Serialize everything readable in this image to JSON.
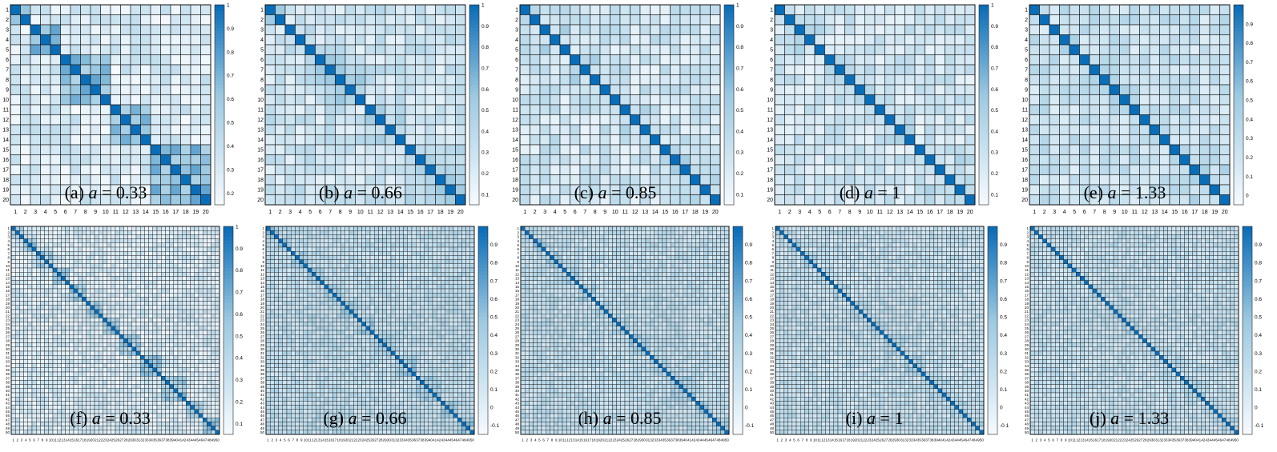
{
  "colors": {
    "low": "#f7fbff",
    "mid": "#9ecae1",
    "high": "#0a6db8",
    "gridline": "#111111"
  },
  "chart_data": [
    {
      "type": "heatmap",
      "panel_label": "(a)",
      "param_name": "a",
      "param_value": "0.33",
      "n": 20,
      "caption_parts": [
        "(a)",
        "a",
        "=",
        "0.33"
      ],
      "ticks": [
        "1",
        "2",
        "3",
        "4",
        "5",
        "6",
        "7",
        "8",
        "9",
        "10",
        "11",
        "12",
        "13",
        "14",
        "15",
        "16",
        "17",
        "18",
        "19",
        "20"
      ],
      "colorbar": {
        "min": 0.15,
        "max": 1.0,
        "ticks": [
          "0.2",
          "0.3",
          "0.4",
          "0.5",
          "0.6",
          "0.7",
          "0.8",
          "0.9",
          "1"
        ]
      },
      "blocks": [
        [
          1,
          2
        ],
        [
          3,
          5
        ],
        [
          6,
          10
        ],
        [
          11,
          14
        ],
        [
          15,
          20
        ]
      ],
      "diagonal": 1.0,
      "within_block": 0.65,
      "between_block": 0.3
    },
    {
      "type": "heatmap",
      "panel_label": "(b)",
      "param_name": "a",
      "param_value": "0.66",
      "n": 20,
      "caption_parts": [
        "(b)",
        "a",
        "=",
        "0.66"
      ],
      "ticks": [
        "1",
        "2",
        "3",
        "4",
        "5",
        "6",
        "7",
        "8",
        "9",
        "10",
        "11",
        "12",
        "13",
        "14",
        "15",
        "16",
        "17",
        "18",
        "19",
        "20"
      ],
      "colorbar": {
        "min": 0.05,
        "max": 1.0,
        "ticks": [
          "0.1",
          "0.2",
          "0.3",
          "0.4",
          "0.5",
          "0.6",
          "0.7",
          "0.8",
          "0.9",
          "1"
        ]
      },
      "blocks": [
        [
          1,
          2
        ],
        [
          3,
          5
        ],
        [
          6,
          10
        ],
        [
          11,
          14
        ],
        [
          15,
          20
        ]
      ],
      "diagonal": 1.0,
      "within_block": 0.45,
      "between_block": 0.3
    },
    {
      "type": "heatmap",
      "panel_label": "(c)",
      "param_name": "a",
      "param_value": "0.85",
      "n": 20,
      "caption_parts": [
        "(c)",
        "a",
        "=",
        "0.85"
      ],
      "ticks": [
        "1",
        "2",
        "3",
        "4",
        "5",
        "6",
        "7",
        "8",
        "9",
        "10",
        "11",
        "12",
        "13",
        "14",
        "15",
        "16",
        "17",
        "18",
        "19",
        "20"
      ],
      "colorbar": {
        "min": 0.05,
        "max": 1.0,
        "ticks": [
          "0.1",
          "0.2",
          "0.3",
          "0.4",
          "0.5",
          "0.6",
          "0.7",
          "0.8",
          "0.9",
          "1"
        ]
      },
      "blocks": [
        [
          1,
          2
        ],
        [
          3,
          5
        ],
        [
          6,
          10
        ],
        [
          11,
          14
        ],
        [
          15,
          20
        ]
      ],
      "diagonal": 1.0,
      "within_block": 0.4,
      "between_block": 0.28
    },
    {
      "type": "heatmap",
      "panel_label": "(d)",
      "param_name": "a",
      "param_value": "1",
      "n": 20,
      "caption_parts": [
        "(d)",
        "a",
        "=",
        "1"
      ],
      "ticks": [
        "1",
        "2",
        "3",
        "4",
        "5",
        "6",
        "7",
        "8",
        "9",
        "10",
        "11",
        "12",
        "13",
        "14",
        "15",
        "16",
        "17",
        "18",
        "19",
        "20"
      ],
      "colorbar": {
        "min": 0.05,
        "max": 1.0,
        "ticks": [
          "0.1",
          "0.2",
          "0.3",
          "0.4",
          "0.5",
          "0.6",
          "0.7",
          "0.8",
          "0.9",
          "1"
        ]
      },
      "blocks": [
        [
          1,
          2
        ],
        [
          3,
          5
        ],
        [
          6,
          10
        ],
        [
          11,
          14
        ],
        [
          15,
          20
        ]
      ],
      "diagonal": 1.0,
      "within_block": 0.36,
      "between_block": 0.27
    },
    {
      "type": "heatmap",
      "panel_label": "(e)",
      "param_name": "a",
      "param_value": "1.33",
      "n": 20,
      "caption_parts": [
        "(e)",
        "a",
        "=",
        "1.33"
      ],
      "ticks": [
        "1",
        "2",
        "3",
        "4",
        "5",
        "6",
        "7",
        "8",
        "9",
        "10",
        "11",
        "12",
        "13",
        "14",
        "15",
        "16",
        "17",
        "18",
        "19",
        "20"
      ],
      "colorbar": {
        "min": -0.05,
        "max": 1.0,
        "ticks": [
          "0",
          "0.1",
          "0.2",
          "0.3",
          "0.4",
          "0.5",
          "0.6",
          "0.7",
          "0.8",
          "0.9"
        ]
      },
      "blocks": [
        [
          1,
          2
        ],
        [
          3,
          5
        ],
        [
          6,
          10
        ],
        [
          11,
          14
        ],
        [
          15,
          20
        ]
      ],
      "diagonal": 1.0,
      "within_block": 0.34,
      "between_block": 0.25
    },
    {
      "type": "heatmap",
      "panel_label": "(f)",
      "param_name": "a",
      "param_value": "0.33",
      "n": 50,
      "caption_parts": [
        "(f)",
        "a",
        "=",
        "0.33"
      ],
      "colorbar": {
        "min": 0.05,
        "max": 1.0,
        "ticks": [
          "0.1",
          "0.2",
          "0.3",
          "0.4",
          "0.5",
          "0.6",
          "0.7",
          "0.8",
          "0.9",
          "1"
        ]
      },
      "blocks": [
        [
          1,
          3
        ],
        [
          4,
          6
        ],
        [
          7,
          10
        ],
        [
          11,
          14
        ],
        [
          15,
          18
        ],
        [
          19,
          22
        ],
        [
          23,
          26
        ],
        [
          27,
          31
        ],
        [
          32,
          36
        ],
        [
          37,
          42
        ],
        [
          43,
          46
        ],
        [
          47,
          50
        ]
      ],
      "diagonal": 1.0,
      "within_block": 0.55,
      "between_block": 0.25
    },
    {
      "type": "heatmap",
      "panel_label": "(g)",
      "param_name": "a",
      "param_value": "0.66",
      "n": 50,
      "caption_parts": [
        "(g)",
        "a",
        "=",
        "0.66"
      ],
      "colorbar": {
        "min": -0.15,
        "max": 1.0,
        "ticks": [
          "-0.1",
          "0",
          "0.1",
          "0.2",
          "0.3",
          "0.4",
          "0.5",
          "0.6",
          "0.7",
          "0.8",
          "0.9"
        ]
      },
      "blocks": [
        [
          1,
          3
        ],
        [
          4,
          6
        ],
        [
          7,
          10
        ],
        [
          11,
          14
        ],
        [
          15,
          18
        ],
        [
          19,
          22
        ],
        [
          23,
          26
        ],
        [
          27,
          31
        ],
        [
          32,
          36
        ],
        [
          37,
          42
        ],
        [
          43,
          46
        ],
        [
          47,
          50
        ]
      ],
      "diagonal": 1.0,
      "within_block": 0.45,
      "between_block": 0.25
    },
    {
      "type": "heatmap",
      "panel_label": "(h)",
      "param_name": "a",
      "param_value": "0.85",
      "n": 50,
      "caption_parts": [
        "(h)",
        "a",
        "=",
        "0.85"
      ],
      "colorbar": {
        "min": -0.15,
        "max": 1.0,
        "ticks": [
          "-0.1",
          "0",
          "0.1",
          "0.2",
          "0.3",
          "0.4",
          "0.5",
          "0.6",
          "0.7",
          "0.8",
          "0.9"
        ]
      },
      "blocks": [
        [
          1,
          3
        ],
        [
          4,
          6
        ],
        [
          7,
          10
        ],
        [
          11,
          14
        ],
        [
          15,
          18
        ],
        [
          19,
          22
        ],
        [
          23,
          26
        ],
        [
          27,
          31
        ],
        [
          32,
          36
        ],
        [
          37,
          42
        ],
        [
          43,
          46
        ],
        [
          47,
          50
        ]
      ],
      "diagonal": 1.0,
      "within_block": 0.4,
      "between_block": 0.23
    },
    {
      "type": "heatmap",
      "panel_label": "(i)",
      "param_name": "a",
      "param_value": "1",
      "n": 50,
      "caption_parts": [
        "(i)",
        "a",
        "=",
        "1"
      ],
      "colorbar": {
        "min": -0.15,
        "max": 1.0,
        "ticks": [
          "-0.1",
          "0",
          "0.1",
          "0.2",
          "0.3",
          "0.4",
          "0.5",
          "0.6",
          "0.7",
          "0.8",
          "0.9"
        ]
      },
      "blocks": [
        [
          1,
          3
        ],
        [
          4,
          6
        ],
        [
          7,
          10
        ],
        [
          11,
          14
        ],
        [
          15,
          18
        ],
        [
          19,
          22
        ],
        [
          23,
          26
        ],
        [
          27,
          31
        ],
        [
          32,
          36
        ],
        [
          37,
          42
        ],
        [
          43,
          46
        ],
        [
          47,
          50
        ]
      ],
      "diagonal": 1.0,
      "within_block": 0.36,
      "between_block": 0.22
    },
    {
      "type": "heatmap",
      "panel_label": "(j)",
      "param_name": "a",
      "param_value": "1.33",
      "n": 50,
      "caption_parts": [
        "(j)",
        "a",
        "=",
        "1.33"
      ],
      "colorbar": {
        "min": -0.15,
        "max": 1.0,
        "ticks": [
          "-0.1",
          "0",
          "0.1",
          "0.2",
          "0.3",
          "0.4",
          "0.5",
          "0.6",
          "0.7",
          "0.8",
          "0.9"
        ]
      },
      "blocks": [
        [
          1,
          3
        ],
        [
          4,
          6
        ],
        [
          7,
          10
        ],
        [
          11,
          14
        ],
        [
          15,
          18
        ],
        [
          19,
          22
        ],
        [
          23,
          26
        ],
        [
          27,
          31
        ],
        [
          32,
          36
        ],
        [
          37,
          42
        ],
        [
          43,
          46
        ],
        [
          47,
          50
        ]
      ],
      "diagonal": 1.0,
      "within_block": 0.3,
      "between_block": 0.22
    }
  ]
}
